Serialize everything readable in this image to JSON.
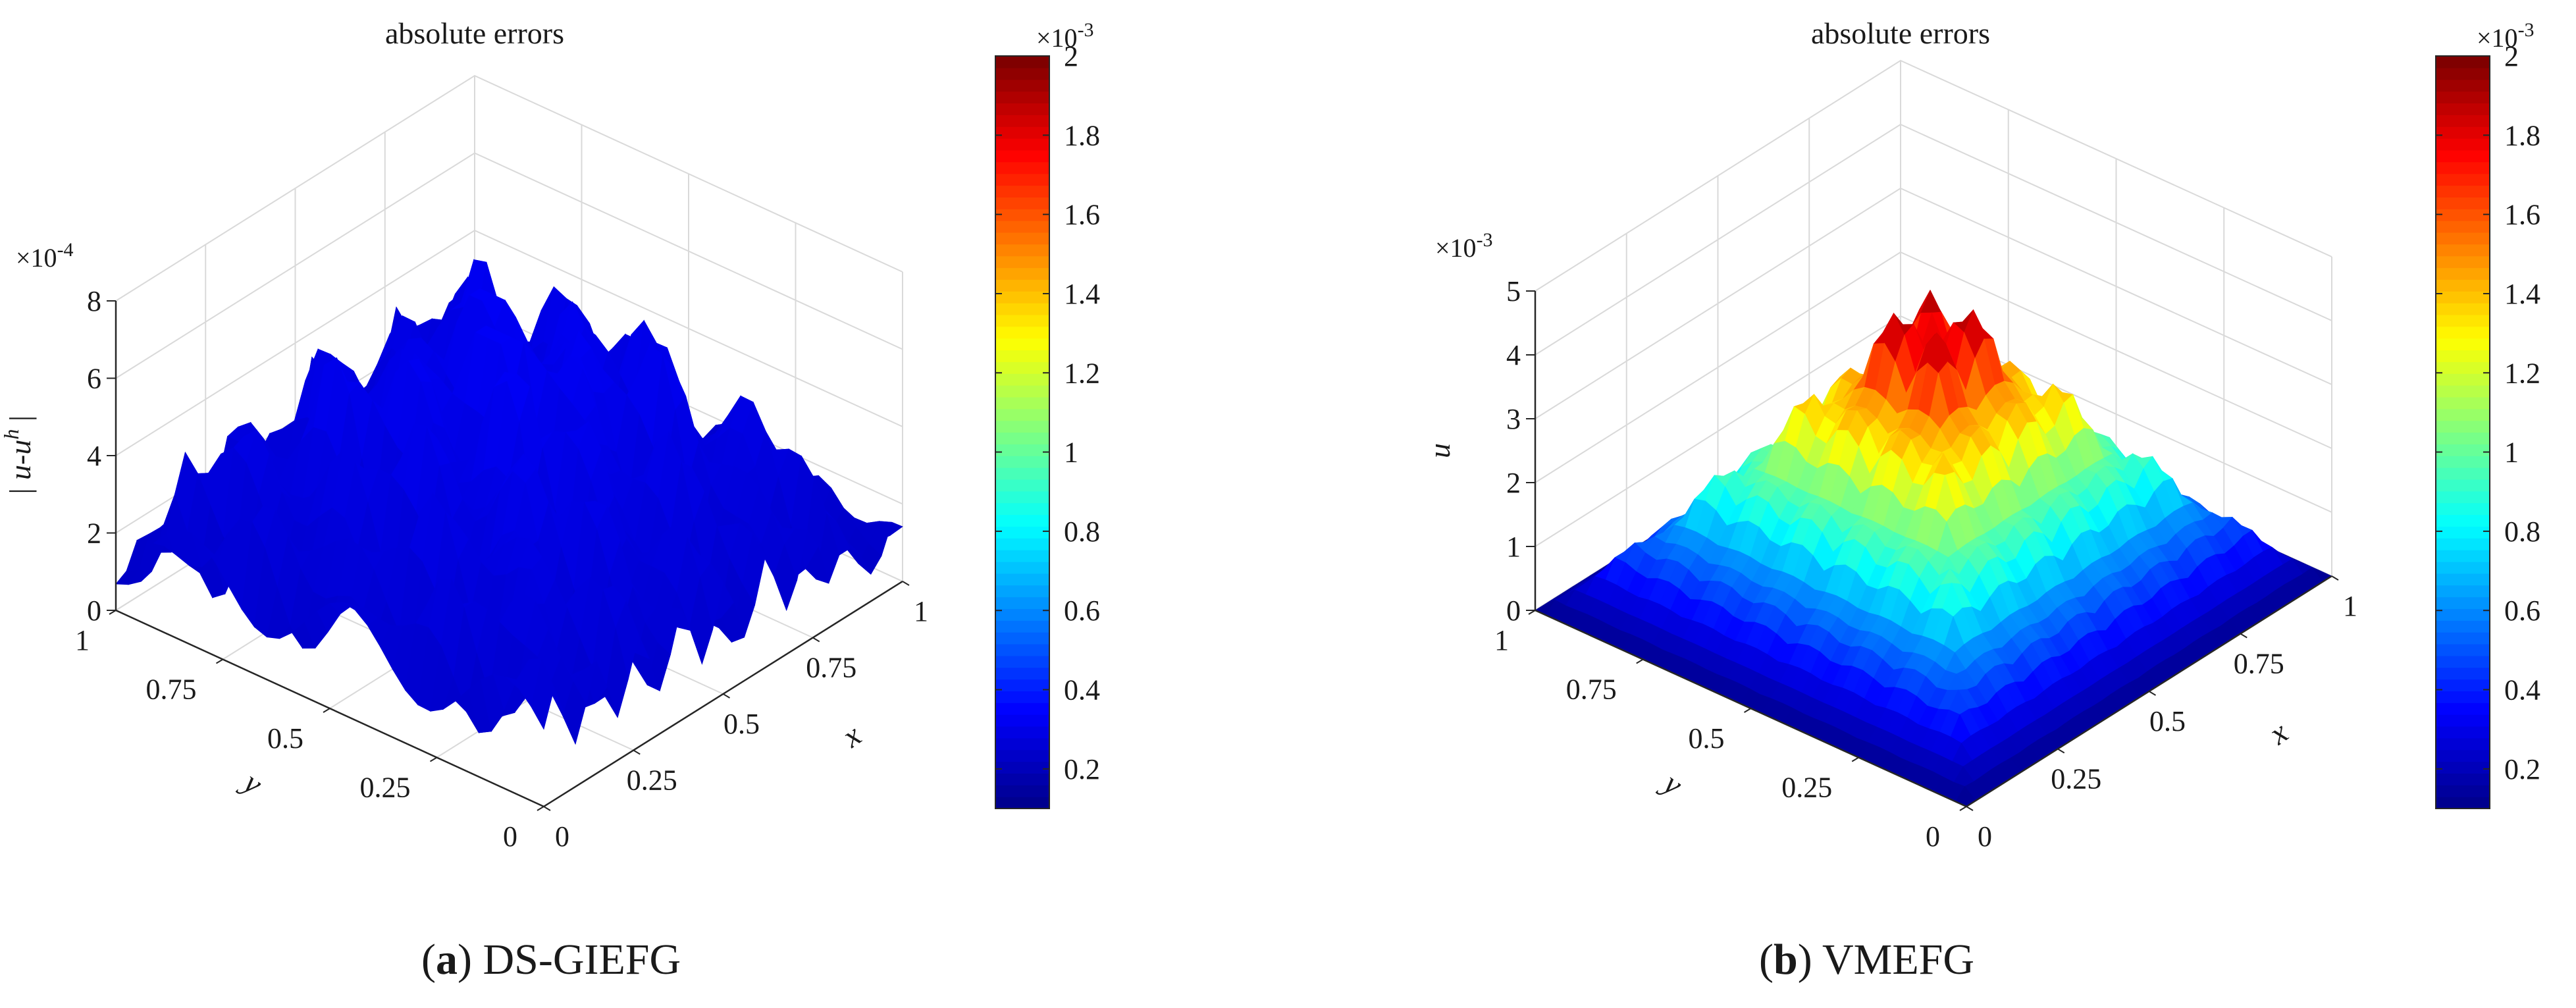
{
  "figure": {
    "panels": [
      {
        "caption": {
          "letter": "a",
          "name": "DS-GIEFG"
        },
        "chart": {
          "type": "surface3d",
          "title": "absolute errors",
          "xlabel": "x",
          "ylabel": "y",
          "zlabel": "| u-u^h |",
          "x_ticks": [
            "0",
            "0.25",
            "0.5",
            "0.75",
            "1"
          ],
          "y_ticks": [
            "0",
            "0.25",
            "0.5",
            "0.75",
            "1"
          ],
          "z_ticks": [
            "0",
            "2",
            "4",
            "6",
            "8"
          ],
          "z_multiplier": "×10^-4",
          "zlim": [
            0,
            8
          ],
          "colorbar": {
            "ticks": [
              "0.2",
              "0.4",
              "0.6",
              "0.8",
              "1",
              "1.2",
              "1.4",
              "1.6",
              "1.8",
              "2"
            ],
            "multiplier": "×10^-3",
            "range": [
              0.1,
              2.0
            ]
          },
          "peak_value": 7.0,
          "grid": true
        }
      },
      {
        "caption": {
          "letter": "b",
          "name": "VMEFG"
        },
        "chart": {
          "type": "surface3d",
          "title": "absolute errors",
          "xlabel": "x",
          "ylabel": "y",
          "zlabel": "u",
          "x_ticks": [
            "0",
            "0.25",
            "0.5",
            "0.75",
            "1"
          ],
          "y_ticks": [
            "0",
            "0.25",
            "0.5",
            "0.75",
            "1"
          ],
          "z_ticks": [
            "0",
            "1",
            "2",
            "3",
            "4",
            "5"
          ],
          "z_multiplier": "×10^-3",
          "zlim": [
            0,
            5
          ],
          "colorbar": {
            "ticks": [
              "0.2",
              "0.4",
              "0.6",
              "0.8",
              "1",
              "1.2",
              "1.4",
              "1.6",
              "1.8",
              "2"
            ],
            "multiplier": "×10^-3",
            "range": [
              0.1,
              2.0
            ]
          },
          "peak_value": 5.0,
          "grid": true
        }
      }
    ]
  },
  "chart_data": [
    {
      "type": "surface3d",
      "title": "absolute errors",
      "xlabel": "x",
      "ylabel": "y",
      "zlabel": "| u-u^h |",
      "xlim": [
        0,
        1
      ],
      "ylim": [
        0,
        1
      ],
      "zlim": [
        0,
        8
      ],
      "z_scale": "×10^-4",
      "colorbar_range": [
        0.1,
        2.0
      ],
      "colorbar_scale": "×10^-3",
      "peak": 7.0,
      "grid": true
    },
    {
      "type": "surface3d",
      "title": "absolute errors",
      "xlabel": "x",
      "ylabel": "y",
      "zlabel": "u",
      "xlim": [
        0,
        1
      ],
      "ylim": [
        0,
        1
      ],
      "zlim": [
        0,
        5
      ],
      "z_scale": "×10^-3",
      "colorbar_range": [
        0.1,
        2.0
      ],
      "colorbar_scale": "×10^-3",
      "peak": 5.0,
      "grid": true
    }
  ],
  "colors": {
    "jet": [
      "#00008f",
      "#0000ff",
      "#00ffff",
      "#ffff00",
      "#ff0000",
      "#800000"
    ],
    "grid": "#d9d9d9",
    "axis": "#262626"
  }
}
